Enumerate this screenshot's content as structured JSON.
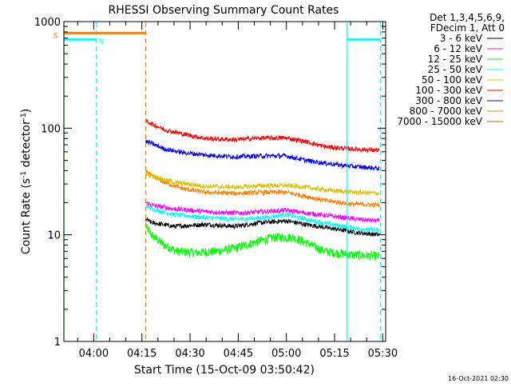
{
  "chart_data": {
    "type": "line",
    "title": "RHESSI Observing Summary Count Rates",
    "xlabel": "Start Time (15-Oct-09 03:50:42)",
    "ylabel_main": "Count Rate (s",
    "ylabel_sup1": "-1",
    "ylabel_mid": " detector",
    "ylabel_sup2": "-1",
    "ylabel_end": ")",
    "y_scale": "log",
    "ylim": [
      1,
      1000
    ],
    "xlim_minutes": [
      230.7,
      330.9
    ],
    "x_ticks": [
      {
        "minute": 240,
        "label": "04:00"
      },
      {
        "minute": 255,
        "label": "04:15"
      },
      {
        "minute": 270,
        "label": "04:30"
      },
      {
        "minute": 285,
        "label": "04:45"
      },
      {
        "minute": 300,
        "label": "05:00"
      },
      {
        "minute": 315,
        "label": "05:15"
      },
      {
        "minute": 330,
        "label": "05:30"
      }
    ],
    "y_ticks": [
      {
        "value": 1,
        "label": "1"
      },
      {
        "value": 10,
        "label": "10"
      },
      {
        "value": 100,
        "label": "100"
      },
      {
        "value": 1000,
        "label": "1000"
      }
    ],
    "legend_header": [
      "Det 1,3,4,5,6,9,",
      "FDecim 1, Att 0"
    ],
    "legend_position": "outside-right",
    "series": [
      {
        "name": "3 - 6 keV",
        "color": "#000000",
        "anchors": [
          [
            256.2,
            14
          ],
          [
            258,
            13
          ],
          [
            265,
            12
          ],
          [
            275,
            12.5
          ],
          [
            284,
            12
          ],
          [
            292,
            13
          ],
          [
            300,
            13.5
          ],
          [
            306,
            12.5
          ],
          [
            314,
            11.5
          ],
          [
            322,
            10.5
          ],
          [
            329,
            10
          ]
        ]
      },
      {
        "name": "6 - 12 keV",
        "color": "#ff00ff",
        "anchors": [
          [
            256.2,
            20
          ],
          [
            258,
            19
          ],
          [
            265,
            17.5
          ],
          [
            275,
            16.5
          ],
          [
            285,
            16
          ],
          [
            293,
            16.5
          ],
          [
            300,
            17
          ],
          [
            306,
            16
          ],
          [
            314,
            15
          ],
          [
            322,
            14
          ],
          [
            329,
            13.5
          ]
        ]
      },
      {
        "name": "12 - 25 keV",
        "color": "#00ff00",
        "anchors": [
          [
            256.2,
            12
          ],
          [
            258,
            10
          ],
          [
            262,
            8
          ],
          [
            266,
            7
          ],
          [
            272,
            6.8
          ],
          [
            278,
            7
          ],
          [
            284,
            7.5
          ],
          [
            290,
            8.5
          ],
          [
            296,
            9.5
          ],
          [
            302,
            9.5
          ],
          [
            306,
            8.5
          ],
          [
            312,
            7
          ],
          [
            320,
            6.5
          ],
          [
            329,
            6.3
          ]
        ]
      },
      {
        "name": "25 - 50 keV",
        "color": "#00ffff",
        "anchors": [
          [
            256.2,
            19
          ],
          [
            258,
            17.5
          ],
          [
            265,
            15.5
          ],
          [
            275,
            14.5
          ],
          [
            285,
            14
          ],
          [
            293,
            14.5
          ],
          [
            300,
            15.5
          ],
          [
            306,
            14
          ],
          [
            314,
            12.5
          ],
          [
            322,
            11.5
          ],
          [
            329,
            11
          ]
        ]
      },
      {
        "name": "50 - 100 keV",
        "color": "#e0c000",
        "anchors": [
          [
            256.2,
            38
          ],
          [
            258,
            36
          ],
          [
            265,
            31
          ],
          [
            275,
            28.5
          ],
          [
            285,
            28
          ],
          [
            293,
            29
          ],
          [
            300,
            29
          ],
          [
            306,
            28
          ],
          [
            314,
            26
          ],
          [
            322,
            25
          ],
          [
            329,
            24.5
          ]
        ]
      },
      {
        "name": "100 - 300 keV",
        "color": "#ff0000",
        "anchors": [
          [
            256.2,
            118
          ],
          [
            258,
            110
          ],
          [
            262,
            97
          ],
          [
            268,
            88
          ],
          [
            275,
            80
          ],
          [
            284,
            78
          ],
          [
            292,
            81
          ],
          [
            300,
            81
          ],
          [
            306,
            75
          ],
          [
            312,
            67
          ],
          [
            320,
            64
          ],
          [
            329,
            62
          ]
        ]
      },
      {
        "name": "300 - 800 keV",
        "color": "#0000ff",
        "anchors": [
          [
            256.2,
            75
          ],
          [
            258,
            72
          ],
          [
            262,
            64
          ],
          [
            268,
            59
          ],
          [
            275,
            56
          ],
          [
            284,
            54
          ],
          [
            292,
            55
          ],
          [
            300,
            55
          ],
          [
            306,
            50
          ],
          [
            312,
            47
          ],
          [
            320,
            44
          ],
          [
            329,
            42
          ]
        ]
      },
      {
        "name": "800 - 7000 keV",
        "color": "#ff8000",
        "anchors": [
          [
            256.2,
            40
          ],
          [
            258,
            36
          ],
          [
            262,
            31
          ],
          [
            268,
            27
          ],
          [
            275,
            25
          ],
          [
            284,
            24.5
          ],
          [
            292,
            25
          ],
          [
            300,
            25
          ],
          [
            306,
            23
          ],
          [
            312,
            21
          ],
          [
            320,
            19.5
          ],
          [
            329,
            19
          ]
        ]
      },
      {
        "name": "7000 - 15000 keV",
        "color": "#808000",
        "anchors": []
      }
    ],
    "flags": [
      {
        "label": "S",
        "color": "#ff8000",
        "x0": 230.7,
        "x1": 256.2,
        "y": 780
      },
      {
        "label": "N",
        "color": "#00ffff",
        "x0": 230.7,
        "x1": 240.8,
        "y": 680
      },
      {
        "label": "",
        "color": "#00ffff",
        "x0": 318.9,
        "x1": 329.3,
        "y": 680
      }
    ],
    "vlines": [
      {
        "x": 230.7,
        "color": "#00ff00",
        "style": "solid"
      },
      {
        "x": 240.8,
        "color": "#00ffff",
        "style": "dashed"
      },
      {
        "x": 256.2,
        "color": "#ff8000",
        "style": "dashed"
      },
      {
        "x": 318.9,
        "color": "#00ffff",
        "style": "solid"
      },
      {
        "x": 329.3,
        "color": "#00ffff",
        "style": "dashed"
      }
    ]
  },
  "footer": {
    "timestamp": "16-Oct-2021 02:30"
  }
}
